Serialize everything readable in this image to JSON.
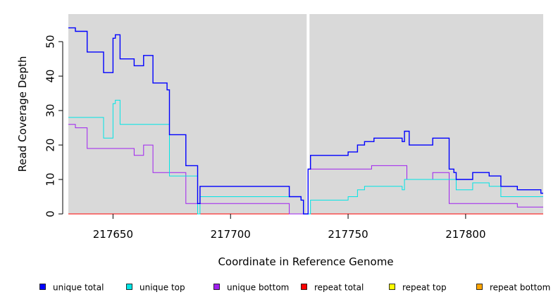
{
  "chart_data": {
    "type": "line",
    "step": true,
    "xlabel": "Coordinate in Reference Genome",
    "ylabel": "Read Coverage Depth",
    "xlim": [
      217631,
      217833
    ],
    "ylim": [
      0,
      58
    ],
    "x_ticks": [
      217650,
      217700,
      217750,
      217800
    ],
    "y_ticks": [
      0,
      10,
      20,
      30,
      40,
      50
    ],
    "background": "#d9d9d9",
    "gap_marker_x": 217733,
    "legend_position": "bottom",
    "series": [
      {
        "name": "unique total",
        "color": "#0000ff",
        "points": [
          [
            217631,
            54
          ],
          [
            217634,
            53
          ],
          [
            217639,
            47
          ],
          [
            217646,
            41
          ],
          [
            217650,
            51
          ],
          [
            217651,
            52
          ],
          [
            217653,
            45
          ],
          [
            217659,
            43
          ],
          [
            217663,
            46
          ],
          [
            217667,
            38
          ],
          [
            217673,
            36
          ],
          [
            217674,
            23
          ],
          [
            217681,
            14
          ],
          [
            217686,
            3
          ],
          [
            217687,
            8
          ],
          [
            217725,
            5
          ],
          [
            217730,
            4
          ],
          [
            217731,
            0
          ],
          [
            217733,
            13
          ],
          [
            217734,
            17
          ],
          [
            217750,
            18
          ],
          [
            217754,
            20
          ],
          [
            217757,
            21
          ],
          [
            217761,
            22
          ],
          [
            217773,
            21
          ],
          [
            217774,
            24
          ],
          [
            217776,
            20
          ],
          [
            217786,
            22
          ],
          [
            217793,
            13
          ],
          [
            217795,
            12
          ],
          [
            217796,
            10
          ],
          [
            217803,
            12
          ],
          [
            217810,
            11
          ],
          [
            217815,
            8
          ],
          [
            217822,
            7
          ],
          [
            217832,
            6
          ]
        ]
      },
      {
        "name": "unique top",
        "color": "#00e5e5",
        "points": [
          [
            217631,
            28
          ],
          [
            217646,
            22
          ],
          [
            217650,
            32
          ],
          [
            217651,
            33
          ],
          [
            217653,
            26
          ],
          [
            217673,
            26
          ],
          [
            217674,
            11
          ],
          [
            217681,
            11
          ],
          [
            217686,
            0
          ],
          [
            217687,
            5
          ],
          [
            217725,
            5
          ],
          [
            217730,
            4
          ],
          [
            217731,
            0
          ],
          [
            217733,
            0
          ],
          [
            217734,
            4
          ],
          [
            217745,
            4
          ],
          [
            217750,
            5
          ],
          [
            217754,
            7
          ],
          [
            217757,
            8
          ],
          [
            217773,
            7
          ],
          [
            217774,
            10
          ],
          [
            217796,
            7
          ],
          [
            217803,
            9
          ],
          [
            217810,
            8
          ],
          [
            217815,
            5
          ],
          [
            217832,
            5
          ]
        ]
      },
      {
        "name": "unique bottom",
        "color": "#a020f0",
        "points": [
          [
            217631,
            26
          ],
          [
            217634,
            25
          ],
          [
            217639,
            19
          ],
          [
            217659,
            17
          ],
          [
            217663,
            20
          ],
          [
            217667,
            12
          ],
          [
            217681,
            3
          ],
          [
            217725,
            0
          ],
          [
            217733,
            13
          ],
          [
            217760,
            14
          ],
          [
            217775,
            10
          ],
          [
            217786,
            12
          ],
          [
            217793,
            3
          ],
          [
            217822,
            2
          ],
          [
            217832,
            2
          ]
        ]
      },
      {
        "name": "repeat total",
        "color": "#ff0000",
        "points": [
          [
            217631,
            0
          ],
          [
            217833,
            0
          ]
        ]
      },
      {
        "name": "repeat top",
        "color": "#ffff00",
        "points": [
          [
            217631,
            0
          ],
          [
            217833,
            0
          ]
        ]
      },
      {
        "name": "repeat bottom",
        "color": "#ffa500",
        "points": [
          [
            217631,
            0
          ],
          [
            217833,
            0
          ]
        ]
      }
    ]
  }
}
